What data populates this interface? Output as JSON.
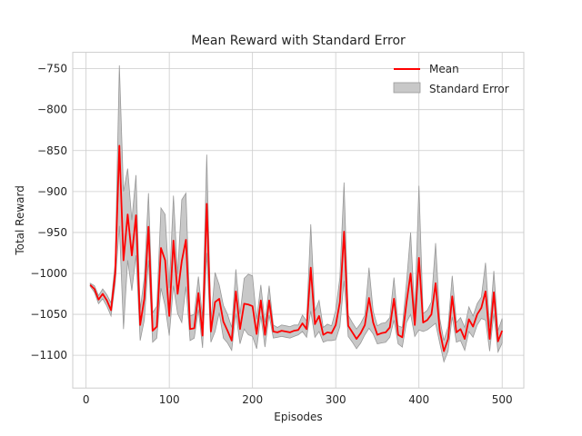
{
  "chart_data": {
    "type": "line",
    "title": "Mean Reward with Standard Error",
    "xlabel": "Episodes",
    "ylabel": "Total Reward",
    "xlim": [
      -16,
      526
    ],
    "ylim": [
      -1140,
      -730
    ],
    "xticks": [
      0,
      100,
      200,
      300,
      400,
      500
    ],
    "yticks": [
      -750,
      -800,
      -850,
      -900,
      -950,
      -1000,
      -1050,
      -1100
    ],
    "grid": true,
    "legend_position": "top-right",
    "colors": {
      "mean": "#ff0000",
      "band_fill": "#c8c8c8",
      "band_edge": "#999999"
    },
    "series": [
      {
        "name": "Mean",
        "x": [
          5,
          10,
          15,
          20,
          25,
          30,
          35,
          40,
          45,
          50,
          55,
          60,
          65,
          70,
          75,
          80,
          85,
          90,
          95,
          100,
          105,
          110,
          115,
          120,
          125,
          130,
          135,
          140,
          145,
          150,
          155,
          160,
          165,
          170,
          175,
          180,
          185,
          190,
          195,
          200,
          205,
          210,
          215,
          220,
          225,
          230,
          235,
          240,
          245,
          250,
          255,
          260,
          265,
          270,
          275,
          280,
          285,
          290,
          295,
          300,
          305,
          310,
          315,
          320,
          325,
          330,
          335,
          340,
          345,
          350,
          355,
          360,
          365,
          370,
          375,
          380,
          385,
          390,
          395,
          400,
          405,
          410,
          415,
          420,
          425,
          430,
          435,
          440,
          445,
          450,
          455,
          460,
          465,
          470,
          475,
          480,
          485,
          490,
          495,
          500
        ],
        "values": [
          -1014,
          -1019,
          -1032,
          -1025,
          -1033,
          -1045,
          -1000,
          -844,
          -984,
          -928,
          -978,
          -929,
          -1063,
          -1031,
          -943,
          -1070,
          -1065,
          -969,
          -984,
          -1052,
          -960,
          -1025,
          -985,
          -959,
          -1068,
          -1067,
          -1024,
          -1076,
          -915,
          -1071,
          -1035,
          -1031,
          -1059,
          -1070,
          -1082,
          -1022,
          -1068,
          -1037,
          -1038,
          -1040,
          -1074,
          -1033,
          -1075,
          -1033,
          -1071,
          -1072,
          -1070,
          -1071,
          -1072,
          -1070,
          -1069,
          -1061,
          -1068,
          -993,
          -1062,
          -1052,
          -1075,
          -1072,
          -1073,
          -1063,
          -1035,
          -949,
          -1064,
          -1072,
          -1080,
          -1073,
          -1063,
          -1030,
          -1060,
          -1075,
          -1073,
          -1072,
          -1066,
          -1031,
          -1075,
          -1078,
          -1036,
          -1000,
          -1063,
          -981,
          -1060,
          -1057,
          -1050,
          -1012,
          -1070,
          -1095,
          -1080,
          -1028,
          -1072,
          -1068,
          -1080,
          -1056,
          -1065,
          -1050,
          -1042,
          -1022,
          -1080,
          -1023,
          -1083,
          -1070
        ]
      },
      {
        "name": "Standard Error",
        "x": [
          5,
          10,
          15,
          20,
          25,
          30,
          35,
          40,
          45,
          50,
          55,
          60,
          65,
          70,
          75,
          80,
          85,
          90,
          95,
          100,
          105,
          110,
          115,
          120,
          125,
          130,
          135,
          140,
          145,
          150,
          155,
          160,
          165,
          170,
          175,
          180,
          185,
          190,
          195,
          200,
          205,
          210,
          215,
          220,
          225,
          230,
          235,
          240,
          245,
          250,
          255,
          260,
          265,
          270,
          275,
          280,
          285,
          290,
          295,
          300,
          305,
          310,
          315,
          320,
          325,
          330,
          335,
          340,
          345,
          350,
          355,
          360,
          365,
          370,
          375,
          380,
          385,
          390,
          395,
          400,
          405,
          410,
          415,
          420,
          425,
          430,
          435,
          440,
          445,
          450,
          455,
          460,
          465,
          470,
          475,
          480,
          485,
          490,
          495,
          500
        ],
        "upper": [
          -1012,
          -1015,
          -1027,
          -1019,
          -1026,
          -1036,
          -987,
          -746,
          -900,
          -872,
          -935,
          -880,
          -1044,
          -1005,
          -902,
          -1048,
          -1040,
          -920,
          -928,
          -1018,
          -905,
          -1001,
          -910,
          -902,
          -1052,
          -1050,
          -1004,
          -1055,
          -855,
          -1058,
          -999,
          -1014,
          -1039,
          -1050,
          -1066,
          -995,
          -1050,
          -1006,
          -1001,
          -1003,
          -1056,
          -1014,
          -1060,
          -1015,
          -1063,
          -1066,
          -1063,
          -1064,
          -1065,
          -1063,
          -1063,
          -1051,
          -1058,
          -940,
          -1046,
          -1033,
          -1066,
          -1062,
          -1064,
          -1045,
          -1005,
          -889,
          -1051,
          -1060,
          -1068,
          -1061,
          -1051,
          -993,
          -1046,
          -1064,
          -1061,
          -1060,
          -1054,
          -1005,
          -1064,
          -1066,
          -1012,
          -950,
          -1049,
          -893,
          -1049,
          -1045,
          -1035,
          -963,
          -1055,
          -1082,
          -1065,
          -1003,
          -1060,
          -1054,
          -1066,
          -1041,
          -1052,
          -1037,
          -1029,
          -987,
          -1065,
          -997,
          -1070,
          -1055
        ],
        "lower": [
          -1016,
          -1023,
          -1037,
          -1031,
          -1040,
          -1052,
          -1013,
          -942,
          -1068,
          -984,
          -1021,
          -978,
          -1082,
          -1057,
          -984,
          -1084,
          -1079,
          -1018,
          -1040,
          -1076,
          -1015,
          -1049,
          -1060,
          -1016,
          -1082,
          -1079,
          -1044,
          -1091,
          -975,
          -1084,
          -1071,
          -1048,
          -1079,
          -1085,
          -1094,
          -1049,
          -1086,
          -1068,
          -1075,
          -1077,
          -1092,
          -1052,
          -1090,
          -1051,
          -1079,
          -1078,
          -1077,
          -1078,
          -1079,
          -1077,
          -1075,
          -1071,
          -1078,
          -1046,
          -1078,
          -1071,
          -1084,
          -1082,
          -1082,
          -1081,
          -1065,
          -1009,
          -1077,
          -1084,
          -1092,
          -1085,
          -1075,
          -1067,
          -1074,
          -1086,
          -1085,
          -1084,
          -1078,
          -1057,
          -1086,
          -1090,
          -1060,
          -1050,
          -1077,
          -1069,
          -1071,
          -1069,
          -1065,
          -1061,
          -1085,
          -1108,
          -1095,
          -1053,
          -1084,
          -1082,
          -1094,
          -1071,
          -1078,
          -1063,
          -1055,
          -1057,
          -1095,
          -1049,
          -1096,
          -1085
        ]
      }
    ]
  }
}
